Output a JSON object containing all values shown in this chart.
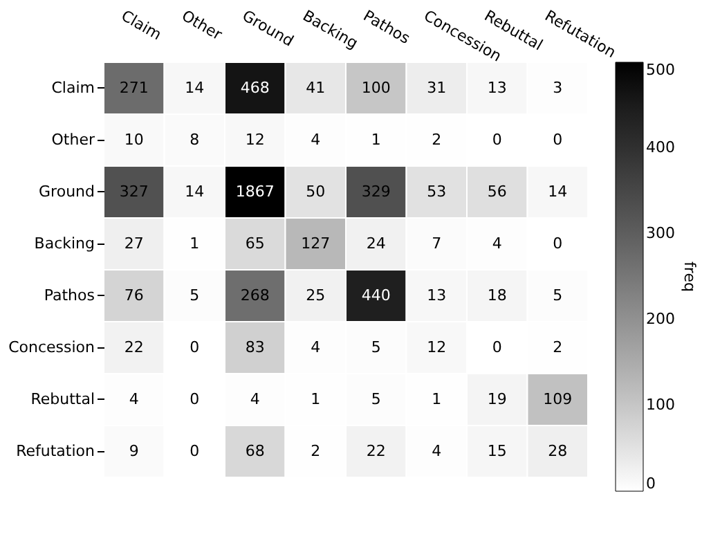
{
  "chart_data": {
    "type": "heatmap",
    "categories": [
      "Claim",
      "Other",
      "Ground",
      "Backing",
      "Pathos",
      "Concession",
      "Rebuttal",
      "Refutation"
    ],
    "y_categories": [
      "Claim",
      "Other",
      "Ground",
      "Backing",
      "Pathos",
      "Concession",
      "Rebuttal",
      "Refutation"
    ],
    "cells": [
      [
        271,
        14,
        468,
        41,
        100,
        31,
        13,
        3
      ],
      [
        10,
        8,
        12,
        4,
        1,
        2,
        0,
        0
      ],
      [
        327,
        14,
        1867,
        50,
        329,
        53,
        56,
        14
      ],
      [
        27,
        1,
        65,
        127,
        24,
        7,
        4,
        0
      ],
      [
        76,
        5,
        268,
        25,
        440,
        13,
        18,
        5
      ],
      [
        22,
        0,
        83,
        4,
        5,
        12,
        0,
        2
      ],
      [
        4,
        0,
        4,
        1,
        5,
        1,
        19,
        109
      ],
      [
        9,
        0,
        68,
        2,
        22,
        4,
        15,
        28
      ]
    ],
    "clabel": "freq",
    "clim": [
      0,
      500
    ],
    "cticks": [
      0,
      100,
      200,
      300,
      400,
      500
    ],
    "data_labels": true
  }
}
